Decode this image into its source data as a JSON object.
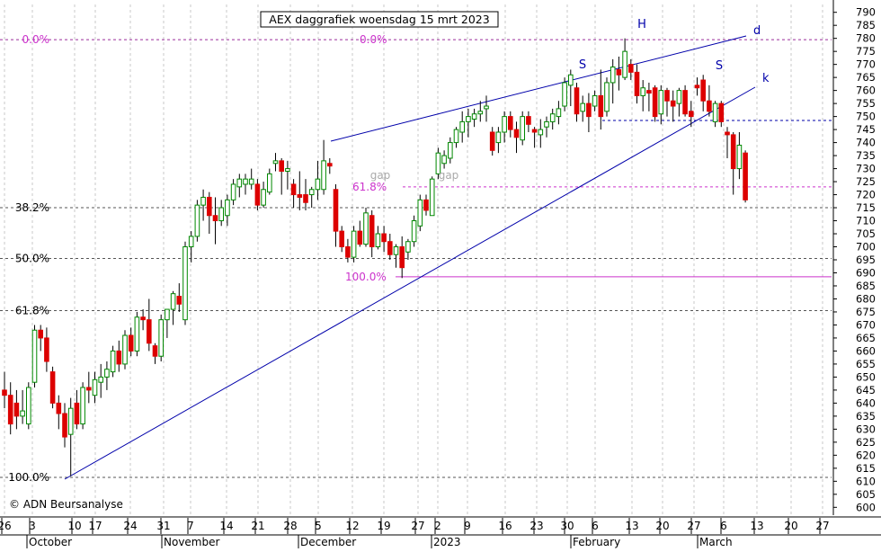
{
  "chart_data": {
    "type": "candlestick",
    "title": "AEX daggrafiek woensdag 15 mrt 2023",
    "copyright": "© ADN Beursanalyse",
    "y_axis": {
      "min": 597,
      "max": 793,
      "ticks": [
        600,
        605,
        610,
        615,
        620,
        625,
        630,
        635,
        640,
        645,
        650,
        655,
        660,
        665,
        670,
        675,
        680,
        685,
        690,
        695,
        700,
        705,
        710,
        715,
        720,
        725,
        730,
        735,
        740,
        745,
        750,
        755,
        760,
        765,
        770,
        775,
        780,
        785,
        790
      ]
    },
    "x_axis": {
      "day_ticks": [
        "26",
        "3",
        "10",
        "17",
        "24",
        "31",
        "7",
        "14",
        "21",
        "28",
        "5",
        "12",
        "19",
        "27",
        "2",
        "9",
        "16",
        "23",
        "30",
        "6",
        "13",
        "20",
        "27",
        "6",
        "13",
        "20",
        "27"
      ],
      "month_labels": [
        "October",
        "November",
        "December",
        "2023",
        "February",
        "March"
      ]
    },
    "fibonacci_left": [
      {
        "label": "0.0%",
        "value": 779.5
      },
      {
        "label": "38.2%",
        "value": 715
      },
      {
        "label": "50.0%",
        "value": 695.5
      },
      {
        "label": "61.8%",
        "value": 675.5
      },
      {
        "label": "100.0%",
        "value": 611.5
      }
    ],
    "fibonacci_right": [
      {
        "label": "0.0%",
        "value": 779.5
      },
      {
        "label": "61.8%",
        "value": 723
      },
      {
        "label": "100.0%",
        "value": 688.5
      }
    ],
    "support_resistance": [
      {
        "name": "resistance",
        "value": 748.5
      }
    ],
    "trendlines": [
      {
        "label": "d",
        "from": {
          "index": 53,
          "value": 740
        },
        "to": {
          "index": 119,
          "value": 781
        }
      },
      {
        "label": "k",
        "from": {
          "index": 10,
          "value": 610
        },
        "to": {
          "index": 121,
          "value": 761
        }
      }
    ],
    "pattern_labels": [
      {
        "text": "S",
        "index": 94,
        "value": 769
      },
      {
        "text": "H",
        "index": 102,
        "value": 784
      },
      {
        "text": "S",
        "index": 114,
        "value": 769
      }
    ],
    "gap_labels": [
      {
        "text": "gap",
        "index": 60,
        "value": 726
      },
      {
        "text": "gap",
        "index": 71,
        "value": 726
      }
    ],
    "candles": [
      {
        "o": 645,
        "h": 652,
        "l": 638,
        "c": 643
      },
      {
        "o": 643,
        "h": 648,
        "l": 628,
        "c": 632
      },
      {
        "o": 640,
        "h": 645,
        "l": 630,
        "c": 635
      },
      {
        "o": 635,
        "h": 645,
        "l": 632,
        "c": 637
      },
      {
        "o": 632,
        "h": 648,
        "l": 630,
        "c": 646
      },
      {
        "o": 648,
        "h": 670,
        "l": 646,
        "c": 668
      },
      {
        "o": 668,
        "h": 670,
        "l": 660,
        "c": 665
      },
      {
        "o": 665,
        "h": 669,
        "l": 652,
        "c": 656
      },
      {
        "o": 652,
        "h": 654,
        "l": 638,
        "c": 640
      },
      {
        "o": 640,
        "h": 643,
        "l": 630,
        "c": 636
      },
      {
        "o": 636,
        "h": 640,
        "l": 623,
        "c": 627
      },
      {
        "o": 628,
        "h": 642,
        "l": 612,
        "c": 638
      },
      {
        "o": 640,
        "h": 645,
        "l": 630,
        "c": 632
      },
      {
        "o": 632,
        "h": 648,
        "l": 630,
        "c": 646
      },
      {
        "o": 646,
        "h": 652,
        "l": 640,
        "c": 645
      },
      {
        "o": 643,
        "h": 652,
        "l": 640,
        "c": 649
      },
      {
        "o": 648,
        "h": 655,
        "l": 642,
        "c": 650
      },
      {
        "o": 650,
        "h": 656,
        "l": 645,
        "c": 653
      },
      {
        "o": 652,
        "h": 662,
        "l": 650,
        "c": 660
      },
      {
        "o": 660,
        "h": 664,
        "l": 652,
        "c": 655
      },
      {
        "o": 655,
        "h": 668,
        "l": 653,
        "c": 666
      },
      {
        "o": 666,
        "h": 669,
        "l": 658,
        "c": 660
      },
      {
        "o": 660,
        "h": 675,
        "l": 658,
        "c": 673
      },
      {
        "o": 673,
        "h": 676,
        "l": 668,
        "c": 672
      },
      {
        "o": 672,
        "h": 680,
        "l": 660,
        "c": 663
      },
      {
        "o": 662,
        "h": 663,
        "l": 655,
        "c": 658
      },
      {
        "o": 658,
        "h": 674,
        "l": 656,
        "c": 672
      },
      {
        "o": 672,
        "h": 676,
        "l": 665,
        "c": 676
      },
      {
        "o": 676,
        "h": 683,
        "l": 670,
        "c": 682
      },
      {
        "o": 681,
        "h": 686,
        "l": 675,
        "c": 678
      },
      {
        "o": 672,
        "h": 702,
        "l": 670,
        "c": 700
      },
      {
        "o": 700,
        "h": 706,
        "l": 694,
        "c": 704
      },
      {
        "o": 704,
        "h": 718,
        "l": 702,
        "c": 716
      },
      {
        "o": 716,
        "h": 722,
        "l": 710,
        "c": 719
      },
      {
        "o": 719,
        "h": 721,
        "l": 705,
        "c": 712
      },
      {
        "o": 712,
        "h": 719,
        "l": 701,
        "c": 710
      },
      {
        "o": 710,
        "h": 718,
        "l": 708,
        "c": 715
      },
      {
        "o": 712,
        "h": 720,
        "l": 708,
        "c": 718
      },
      {
        "o": 718,
        "h": 726,
        "l": 716,
        "c": 724
      },
      {
        "o": 723,
        "h": 728,
        "l": 719,
        "c": 726
      },
      {
        "o": 724,
        "h": 728,
        "l": 720,
        "c": 726
      },
      {
        "o": 724,
        "h": 730,
        "l": 722,
        "c": 726
      },
      {
        "o": 724,
        "h": 726,
        "l": 714,
        "c": 716
      },
      {
        "o": 716,
        "h": 725,
        "l": 715,
        "c": 722
      },
      {
        "o": 721,
        "h": 730,
        "l": 720,
        "c": 728
      },
      {
        "o": 732,
        "h": 736,
        "l": 729,
        "c": 733
      },
      {
        "o": 733,
        "h": 734,
        "l": 720,
        "c": 729
      },
      {
        "o": 729,
        "h": 733,
        "l": 722,
        "c": 730
      },
      {
        "o": 724,
        "h": 726,
        "l": 715,
        "c": 720
      },
      {
        "o": 720,
        "h": 729,
        "l": 714,
        "c": 719
      },
      {
        "o": 720,
        "h": 726,
        "l": 714,
        "c": 717
      },
      {
        "o": 720,
        "h": 723,
        "l": 715,
        "c": 722
      },
      {
        "o": 722,
        "h": 733,
        "l": 718,
        "c": 726
      },
      {
        "o": 722,
        "h": 741,
        "l": 720,
        "c": 733
      },
      {
        "o": 732,
        "h": 734,
        "l": 728,
        "c": 731
      },
      {
        "o": 722,
        "h": 724,
        "l": 700,
        "c": 706
      },
      {
        "o": 706,
        "h": 708,
        "l": 698,
        "c": 700
      },
      {
        "o": 700,
        "h": 703,
        "l": 694,
        "c": 696
      },
      {
        "o": 696,
        "h": 708,
        "l": 694,
        "c": 706
      },
      {
        "o": 706,
        "h": 710,
        "l": 700,
        "c": 701
      },
      {
        "o": 701,
        "h": 715,
        "l": 700,
        "c": 713
      },
      {
        "o": 712,
        "h": 714,
        "l": 696,
        "c": 700
      },
      {
        "o": 700,
        "h": 708,
        "l": 699,
        "c": 705
      },
      {
        "o": 705,
        "h": 708,
        "l": 698,
        "c": 702
      },
      {
        "o": 702,
        "h": 705,
        "l": 695,
        "c": 697
      },
      {
        "o": 697,
        "h": 701,
        "l": 692,
        "c": 700
      },
      {
        "o": 700,
        "h": 704,
        "l": 688,
        "c": 692
      },
      {
        "o": 698,
        "h": 703,
        "l": 695,
        "c": 702
      },
      {
        "o": 702,
        "h": 712,
        "l": 700,
        "c": 710
      },
      {
        "o": 708,
        "h": 720,
        "l": 706,
        "c": 718
      },
      {
        "o": 718,
        "h": 720,
        "l": 712,
        "c": 714
      },
      {
        "o": 712,
        "h": 727,
        "l": 712,
        "c": 726
      },
      {
        "o": 728,
        "h": 738,
        "l": 726,
        "c": 736
      },
      {
        "o": 732,
        "h": 737,
        "l": 730,
        "c": 735
      },
      {
        "o": 734,
        "h": 742,
        "l": 732,
        "c": 740
      },
      {
        "o": 740,
        "h": 746,
        "l": 738,
        "c": 745
      },
      {
        "o": 744,
        "h": 752,
        "l": 740,
        "c": 748
      },
      {
        "o": 748,
        "h": 753,
        "l": 742,
        "c": 750
      },
      {
        "o": 749,
        "h": 753,
        "l": 746,
        "c": 751
      },
      {
        "o": 751,
        "h": 756,
        "l": 748,
        "c": 752
      },
      {
        "o": 753,
        "h": 758,
        "l": 748,
        "c": 754
      },
      {
        "o": 744,
        "h": 746,
        "l": 735,
        "c": 737
      },
      {
        "o": 740,
        "h": 746,
        "l": 736,
        "c": 744
      },
      {
        "o": 744,
        "h": 752,
        "l": 740,
        "c": 750
      },
      {
        "o": 750,
        "h": 752,
        "l": 742,
        "c": 745
      },
      {
        "o": 745,
        "h": 748,
        "l": 736,
        "c": 742
      },
      {
        "o": 741,
        "h": 752,
        "l": 739,
        "c": 750
      },
      {
        "o": 750,
        "h": 752,
        "l": 744,
        "c": 747
      },
      {
        "o": 745,
        "h": 746,
        "l": 738,
        "c": 744
      },
      {
        "o": 743,
        "h": 749,
        "l": 738,
        "c": 745
      },
      {
        "o": 746,
        "h": 750,
        "l": 742,
        "c": 748
      },
      {
        "o": 748,
        "h": 753,
        "l": 745,
        "c": 751
      },
      {
        "o": 750,
        "h": 756,
        "l": 747,
        "c": 753
      },
      {
        "o": 754,
        "h": 765,
        "l": 752,
        "c": 763
      },
      {
        "o": 762,
        "h": 768,
        "l": 754,
        "c": 766
      },
      {
        "o": 761,
        "h": 763,
        "l": 748,
        "c": 751
      },
      {
        "o": 752,
        "h": 758,
        "l": 748,
        "c": 755
      },
      {
        "o": 755,
        "h": 759,
        "l": 744,
        "c": 750
      },
      {
        "o": 754,
        "h": 760,
        "l": 752,
        "c": 758
      },
      {
        "o": 758,
        "h": 768,
        "l": 745,
        "c": 750
      },
      {
        "o": 752,
        "h": 765,
        "l": 750,
        "c": 763
      },
      {
        "o": 763,
        "h": 772,
        "l": 755,
        "c": 769
      },
      {
        "o": 768,
        "h": 773,
        "l": 760,
        "c": 766
      },
      {
        "o": 765,
        "h": 780,
        "l": 764,
        "c": 775
      },
      {
        "o": 770,
        "h": 772,
        "l": 764,
        "c": 767
      },
      {
        "o": 767,
        "h": 770,
        "l": 755,
        "c": 758
      },
      {
        "o": 758,
        "h": 764,
        "l": 752,
        "c": 761
      },
      {
        "o": 760,
        "h": 763,
        "l": 752,
        "c": 759
      },
      {
        "o": 761,
        "h": 762,
        "l": 748,
        "c": 750
      },
      {
        "o": 751,
        "h": 762,
        "l": 747,
        "c": 760
      },
      {
        "o": 760,
        "h": 761,
        "l": 750,
        "c": 756
      },
      {
        "o": 756,
        "h": 760,
        "l": 748,
        "c": 754
      },
      {
        "o": 755,
        "h": 761,
        "l": 750,
        "c": 760
      },
      {
        "o": 760,
        "h": 762,
        "l": 750,
        "c": 751
      },
      {
        "o": 752,
        "h": 756,
        "l": 746,
        "c": 750
      },
      {
        "o": 762,
        "h": 765,
        "l": 758,
        "c": 761
      },
      {
        "o": 764,
        "h": 766,
        "l": 752,
        "c": 756
      },
      {
        "o": 756,
        "h": 762,
        "l": 750,
        "c": 752
      },
      {
        "o": 748,
        "h": 756,
        "l": 746,
        "c": 755
      },
      {
        "o": 755,
        "h": 756,
        "l": 746,
        "c": 748
      },
      {
        "o": 744,
        "h": 746,
        "l": 734,
        "c": 743
      },
      {
        "o": 743,
        "h": 744,
        "l": 720,
        "c": 730
      },
      {
        "o": 730,
        "h": 744,
        "l": 726,
        "c": 739
      },
      {
        "o": 736,
        "h": 737,
        "l": 717,
        "c": 718
      }
    ]
  }
}
